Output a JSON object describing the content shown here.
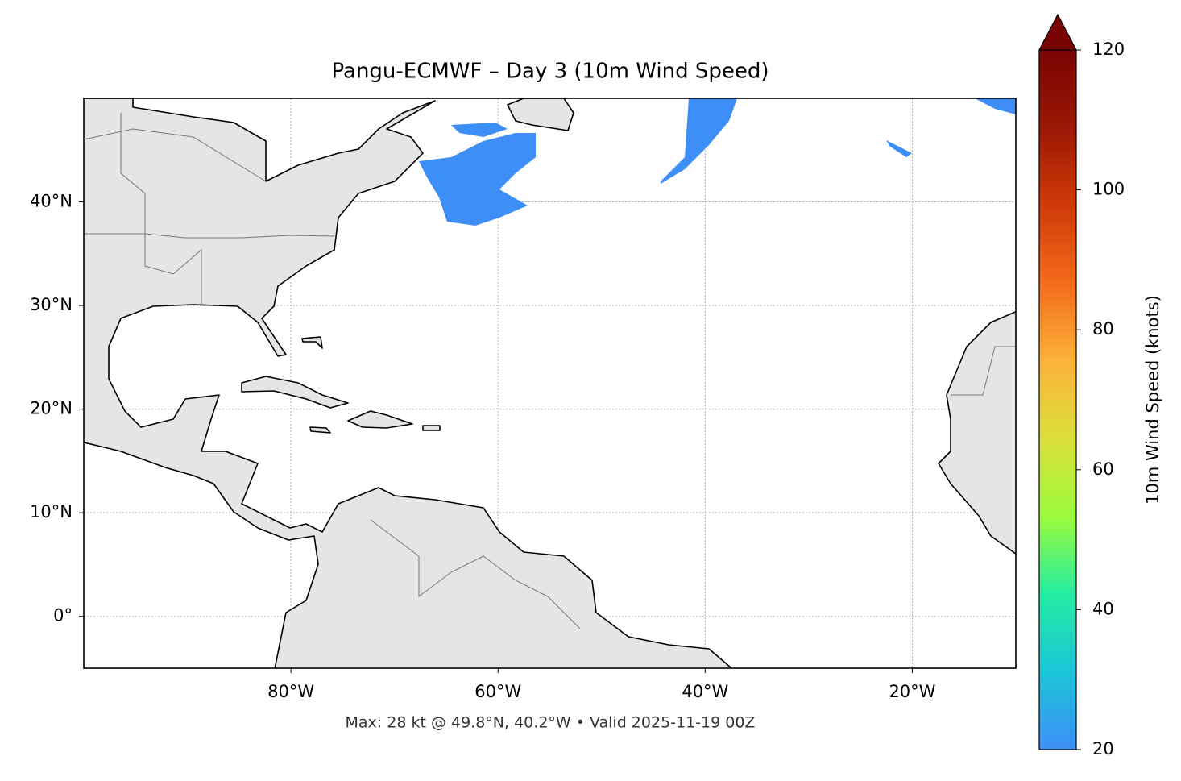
{
  "map": {
    "title": "Pangu-ECMWF – Day 3 (10m Wind Speed)",
    "footer": "Max: 28 kt @ 49.8°N, 40.2°W • Valid 2025-11-19 00Z",
    "xlim": [
      -100,
      -10
    ],
    "ylim": [
      -5,
      50
    ],
    "xticks": [
      {
        "value": -80,
        "label": "80°W"
      },
      {
        "value": -60,
        "label": "60°W"
      },
      {
        "value": -40,
        "label": "40°W"
      },
      {
        "value": -20,
        "label": "20°W"
      }
    ],
    "yticks": [
      {
        "value": 0,
        "label": "0°"
      },
      {
        "value": 10,
        "label": "10°N"
      },
      {
        "value": 20,
        "label": "20°N"
      },
      {
        "value": 30,
        "label": "30°N"
      },
      {
        "value": 40,
        "label": "40°N"
      }
    ],
    "grid": true,
    "colorbar": {
      "label": "10m Wind Speed (knots)",
      "lim": [
        20,
        120
      ],
      "ticks": [
        20,
        40,
        60,
        80,
        100,
        120
      ],
      "colors": [
        "#3e8ef7",
        "#1bc6d8",
        "#24eca2",
        "#9cfb3b",
        "#dbe03a",
        "#fbb23a",
        "#f36b1b",
        "#cf3b08",
        "#9a1704",
        "#7a0403"
      ],
      "extend": "max"
    }
  }
}
